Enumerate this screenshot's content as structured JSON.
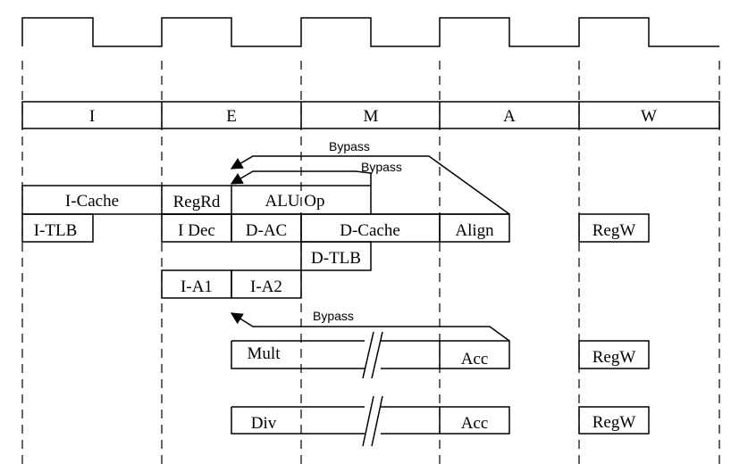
{
  "stages": [
    "I",
    "E",
    "M",
    "A",
    "W"
  ],
  "bypass_labels": [
    "Bypass",
    "Bypass",
    "Bypass"
  ],
  "blocks": {
    "i_cache": "I-Cache",
    "i_tlb": "I-TLB",
    "regrd": "RegRd",
    "alu_op": "ALU Op",
    "i_dec": "I Dec",
    "d_ac": "D-AC",
    "d_cache": "D-Cache",
    "align": "Align",
    "regw_1": "RegW",
    "d_tlb": "D-TLB",
    "i_a1": "I-A1",
    "i_a2": "I-A2",
    "mult": "Mult",
    "acc_1": "Acc",
    "regw_2": "RegW",
    "div": "Div",
    "acc_2": "Acc",
    "regw_3": "RegW"
  }
}
